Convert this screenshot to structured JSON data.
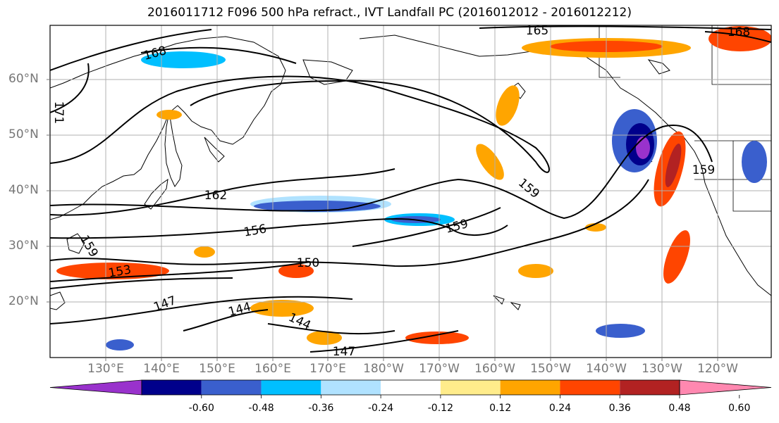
{
  "title": "2016011712 F096 500 hPa refract., IVT Landfall PC (2016012012 - 2016012212)",
  "lat_labels": [
    "60°N",
    "50°N",
    "40°N",
    "30°N",
    "20°N"
  ],
  "lon_labels": [
    "130°E",
    "140°E",
    "150°E",
    "160°E",
    "170°E",
    "180°W",
    "170°W",
    "160°W",
    "150°W",
    "140°W",
    "130°W",
    "120°W"
  ],
  "contour_labels": [
    "168",
    "165",
    "168",
    "171",
    "162",
    "156",
    "159",
    "159",
    "159",
    "159",
    "153",
    "150",
    "147",
    "144",
    "144",
    "147"
  ],
  "colorbar": {
    "ticks": [
      "-0.60",
      "-0.48",
      "-0.36",
      "-0.24",
      "-0.12",
      "0.12",
      "0.24",
      "0.36",
      "0.48",
      "0.60"
    ],
    "colors": [
      "#9932CC",
      "#00008B",
      "#3A5FCD",
      "#00BFFF",
      "#B0E2FF",
      "#FFFFFF",
      "#FFEC8B",
      "#FFA500",
      "#FF4500",
      "#B22222",
      "#FF88B0"
    ]
  }
}
